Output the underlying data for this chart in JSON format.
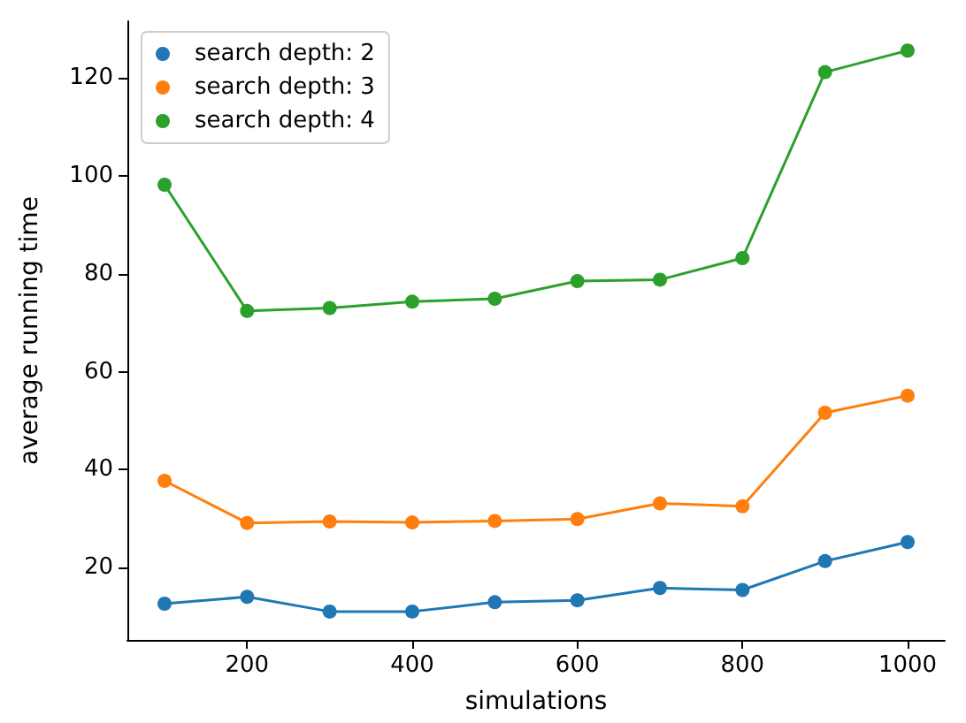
{
  "chart_data": {
    "type": "line",
    "xlabel": "simulations",
    "ylabel": "average running time",
    "x": [
      100,
      200,
      300,
      400,
      500,
      600,
      700,
      800,
      900,
      1000
    ],
    "series": [
      {
        "name": "search depth: 2",
        "color": "#1f77b4",
        "values": [
          12.6,
          14.0,
          11.0,
          11.0,
          12.9,
          13.3,
          15.8,
          15.4,
          21.3,
          25.2
        ]
      },
      {
        "name": "search depth: 3",
        "color": "#ff7f0e",
        "values": [
          37.7,
          29.1,
          29.4,
          29.2,
          29.5,
          29.9,
          33.1,
          32.5,
          51.6,
          55.1
        ]
      },
      {
        "name": "search depth: 4",
        "color": "#2ca02c",
        "values": [
          98.2,
          72.4,
          73.0,
          74.3,
          74.9,
          78.5,
          78.8,
          83.2,
          121.2,
          125.6
        ]
      }
    ],
    "xlim": [
      55,
      1045
    ],
    "xticks": [
      200,
      400,
      600,
      800,
      1000
    ],
    "ylim": [
      5.2,
      131.6
    ],
    "yticks": [
      20,
      40,
      60,
      80,
      100,
      120
    ],
    "legend": "top left",
    "marker": "circle",
    "line_style": "solid",
    "grid": false
  }
}
